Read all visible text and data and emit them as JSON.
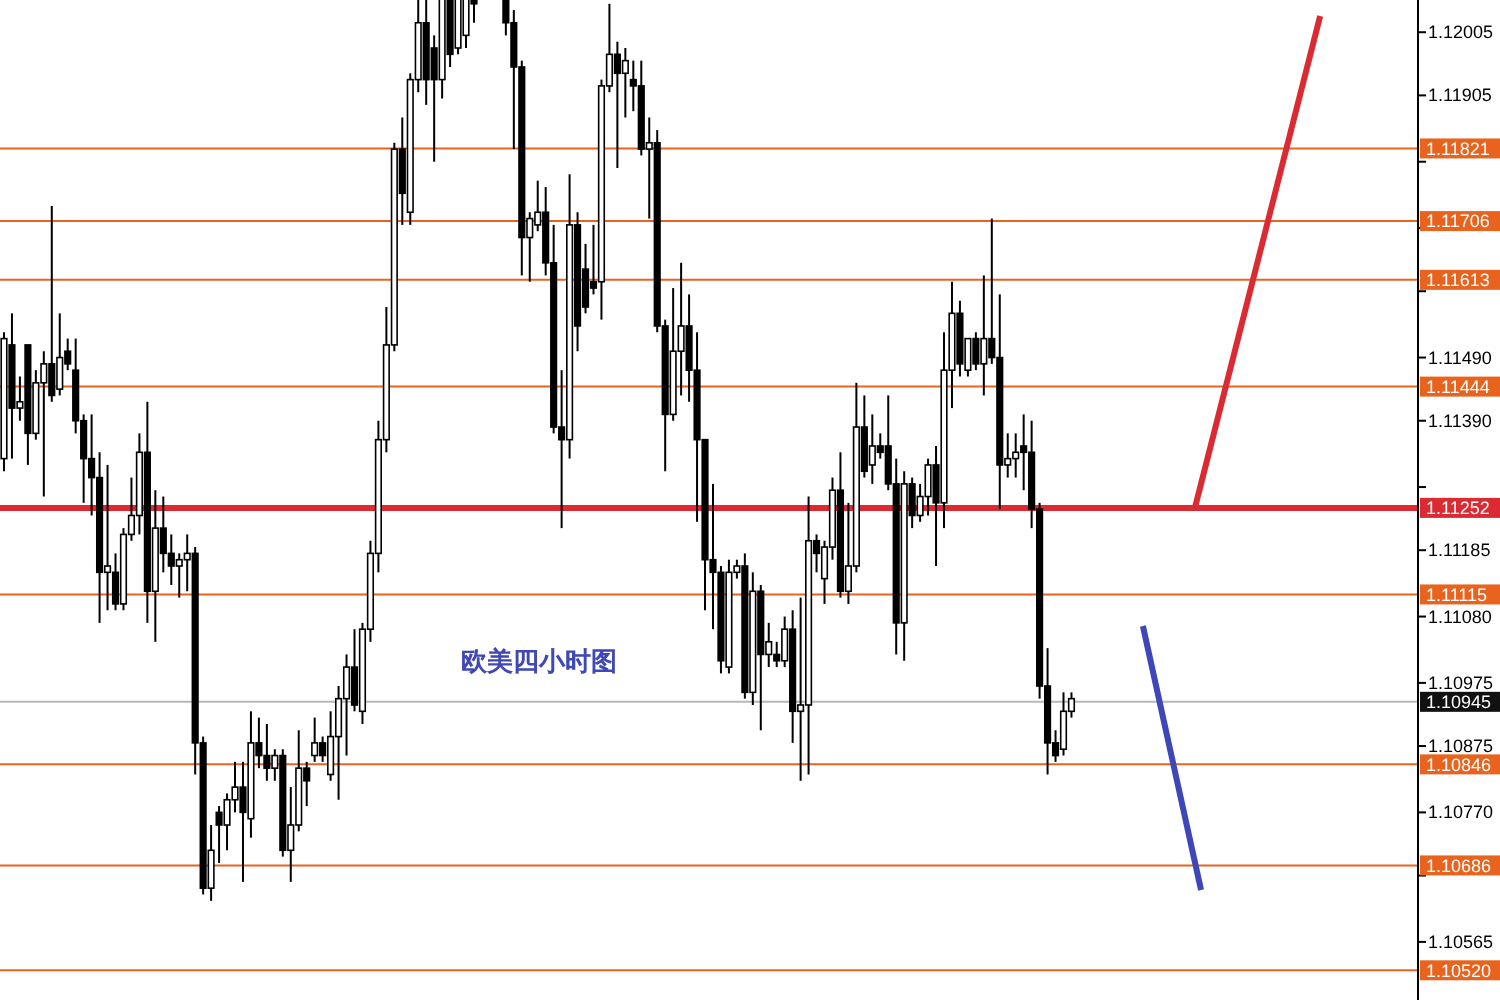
{
  "chart_data": {
    "type": "candlestick",
    "categories": [
      null,
      null,
      null,
      null,
      null,
      null,
      null,
      null,
      null,
      null,
      null,
      null,
      null,
      null,
      null,
      null,
      null,
      null,
      null,
      null,
      null,
      null,
      null,
      null,
      null,
      null,
      null,
      null,
      null,
      null,
      null,
      null,
      null,
      null,
      null,
      null,
      null,
      null,
      null,
      null,
      null,
      null,
      null,
      null,
      null,
      null,
      null,
      null,
      null,
      null,
      null,
      null,
      null,
      null,
      null,
      null,
      null,
      null,
      null,
      null,
      null,
      null,
      null,
      null,
      null,
      null,
      null,
      null,
      null,
      null,
      null,
      null,
      null,
      null,
      null,
      null,
      null,
      null,
      null,
      null,
      null,
      null,
      null,
      null,
      null,
      null,
      null,
      null,
      null,
      null,
      null,
      null,
      null,
      null,
      null,
      null,
      null,
      null,
      null,
      null,
      null,
      null,
      null,
      null,
      null,
      null,
      null,
      null,
      null,
      null,
      null,
      null,
      null,
      null,
      null,
      null,
      null,
      null,
      null,
      null,
      null,
      null,
      null,
      null,
      null,
      null,
      null,
      null,
      null,
      null,
      null,
      null,
      null,
      null,
      null,
      null,
      null,
      null,
      null,
      null,
      null,
      null,
      null,
      null,
      null,
      null,
      null,
      null,
      null,
      null,
      null,
      null,
      null,
      null,
      null,
      null,
      null,
      null,
      null,
      null,
      null,
      null,
      null,
      null,
      null,
      null,
      null,
      null,
      null,
      null,
      null,
      null,
      null,
      null,
      null,
      null,
      null,
      null
    ],
    "ohlc": [
      [
        1.1133,
        1.1153,
        1.1131,
        1.1152
      ],
      [
        1.1151,
        1.1156,
        1.1133,
        1.1141
      ],
      [
        1.1141,
        1.1146,
        1.1139,
        1.1142
      ],
      [
        1.1151,
        1.1151,
        1.1132,
        1.1137
      ],
      [
        1.1137,
        1.1147,
        1.1136,
        1.1145
      ],
      [
        1.1145,
        1.115,
        1.1127,
        1.1148
      ],
      [
        1.1148,
        1.1173,
        1.1142,
        1.1143
      ],
      [
        1.1144,
        1.1156,
        1.1143,
        1.1149
      ],
      [
        1.115,
        1.1152,
        1.1147,
        1.1148
      ],
      [
        1.1147,
        1.1152,
        1.1137,
        1.1139
      ],
      [
        1.1139,
        1.114,
        1.1126,
        1.1133
      ],
      [
        1.1133,
        1.114,
        1.1124,
        1.113
      ],
      [
        1.113,
        1.1134,
        1.1107,
        1.1115
      ],
      [
        1.1115,
        1.1132,
        1.1109,
        1.1116
      ],
      [
        1.1115,
        1.1118,
        1.1109,
        1.111
      ],
      [
        1.111,
        1.1122,
        1.1109,
        1.1121
      ],
      [
        1.1121,
        1.113,
        1.112,
        1.1124
      ],
      [
        1.1124,
        1.1137,
        1.1121,
        1.1134
      ],
      [
        1.1134,
        1.1142,
        1.1107,
        1.1112
      ],
      [
        1.1112,
        1.1128,
        1.1104,
        1.1122
      ],
      [
        1.1122,
        1.1127,
        1.1115,
        1.1118
      ],
      [
        1.1118,
        1.1121,
        1.1113,
        1.1116
      ],
      [
        1.1116,
        1.1118,
        1.1111,
        1.1117
      ],
      [
        1.1117,
        1.1121,
        1.1112,
        1.1118
      ],
      [
        1.1118,
        1.1119,
        1.1083,
        1.1088
      ],
      [
        1.1088,
        1.1089,
        1.1064,
        1.1065
      ],
      [
        1.1065,
        1.1075,
        1.1063,
        1.1071
      ],
      [
        1.1077,
        1.1078,
        1.1069,
        1.1075
      ],
      [
        1.1075,
        1.108,
        1.1071,
        1.1079
      ],
      [
        1.1079,
        1.1085,
        1.1077,
        1.1081
      ],
      [
        1.1081,
        1.1085,
        1.1066,
        1.1077
      ],
      [
        1.1076,
        1.1093,
        1.1073,
        1.1088
      ],
      [
        1.1088,
        1.1092,
        1.1084,
        1.1086
      ],
      [
        1.1086,
        1.1091,
        1.1082,
        1.1084
      ],
      [
        1.1084,
        1.1087,
        1.1082,
        1.1086
      ],
      [
        1.1086,
        1.1087,
        1.107,
        1.1071
      ],
      [
        1.1071,
        1.1081,
        1.1066,
        1.1075
      ],
      [
        1.1075,
        1.109,
        1.1074,
        1.1084
      ],
      [
        1.1084,
        1.1085,
        1.1078,
        1.1082
      ],
      [
        1.1086,
        1.1092,
        1.1085,
        1.1088
      ],
      [
        1.1088,
        1.1089,
        1.1085,
        1.1086
      ],
      [
        1.1083,
        1.1093,
        1.1082,
        1.1089
      ],
      [
        1.1089,
        1.1097,
        1.1079,
        1.1095
      ],
      [
        1.1095,
        1.1102,
        1.1086,
        1.11
      ],
      [
        1.11,
        1.1106,
        1.1093,
        1.1094
      ],
      [
        1.1093,
        1.1107,
        1.1091,
        1.1106
      ],
      [
        1.1106,
        1.112,
        1.1104,
        1.1118
      ],
      [
        1.1118,
        1.1139,
        1.1115,
        1.1136
      ],
      [
        1.1136,
        1.1157,
        1.1134,
        1.1151
      ],
      [
        1.1151,
        1.1183,
        1.115,
        1.1182
      ],
      [
        1.1182,
        1.1187,
        1.117,
        1.1175
      ],
      [
        1.1172,
        1.1194,
        1.117,
        1.1193
      ],
      [
        1.1193,
        1.1206,
        1.1191,
        1.1202
      ],
      [
        1.1202,
        1.1206,
        1.1189,
        1.1193
      ],
      [
        1.1198,
        1.12,
        1.118,
        1.1193
      ],
      [
        1.1193,
        1.1206,
        1.119,
        1.1206
      ],
      [
        1.1206,
        1.1206,
        1.1195,
        1.1197
      ],
      [
        1.1198,
        1.1206,
        1.1197,
        1.1206
      ],
      [
        1.12,
        1.1206,
        1.1198,
        1.1206
      ],
      [
        1.1206,
        1.1206,
        1.1202,
        1.1205
      ],
      null,
      null,
      null,
      [
        1.1206,
        1.1206,
        1.12,
        1.1202
      ],
      [
        1.1202,
        1.1204,
        1.1182,
        1.1195
      ],
      [
        1.1195,
        1.1196,
        1.1162,
        1.1168
      ],
      [
        1.1168,
        1.1172,
        1.1161,
        1.1171
      ],
      [
        1.117,
        1.1177,
        1.1169,
        1.1172
      ],
      [
        1.1172,
        1.1176,
        1.1162,
        1.1164
      ],
      [
        1.1164,
        1.117,
        1.1137,
        1.1138
      ],
      [
        1.1138,
        1.1147,
        1.1122,
        1.1136
      ],
      [
        1.1136,
        1.1178,
        1.1133,
        1.117
      ],
      [
        1.117,
        1.1172,
        1.115,
        1.1154
      ],
      [
        1.1163,
        1.1167,
        1.1156,
        1.1157
      ],
      [
        1.1161,
        1.117,
        1.1159,
        1.116
      ],
      [
        1.1161,
        1.1193,
        1.1155,
        1.1192
      ],
      [
        1.1192,
        1.1205,
        1.1191,
        1.1197
      ],
      [
        1.1197,
        1.1199,
        1.1179,
        1.1194
      ],
      [
        1.1194,
        1.1198,
        1.1187,
        1.1196
      ],
      [
        1.1193,
        1.1196,
        1.1188,
        1.1192
      ],
      [
        1.1192,
        1.1196,
        1.1181,
        1.1182
      ],
      [
        1.1182,
        1.1187,
        1.1171,
        1.1183
      ],
      [
        1.1183,
        1.1185,
        1.1153,
        1.1154
      ],
      [
        1.1154,
        1.1155,
        1.1131,
        1.114
      ],
      [
        1.114,
        1.116,
        1.1139,
        1.115
      ],
      [
        1.115,
        1.1164,
        1.1143,
        1.1154
      ],
      [
        1.1154,
        1.1159,
        1.1142,
        1.1147
      ],
      [
        1.1147,
        1.1153,
        1.1123,
        1.1136
      ],
      [
        1.1136,
        1.1136,
        1.1109,
        1.1117
      ],
      [
        1.1117,
        1.1129,
        1.1106,
        1.1115
      ],
      [
        1.1115,
        1.1116,
        1.1099,
        1.1101
      ],
      [
        1.11,
        1.1117,
        1.1099,
        1.1115
      ],
      [
        1.1115,
        1.1117,
        1.1114,
        1.1116
      ],
      [
        1.1116,
        1.1118,
        1.1095,
        1.1096
      ],
      [
        1.1096,
        1.1115,
        1.1094,
        1.1112
      ],
      [
        1.1112,
        1.1113,
        1.109,
        1.1102
      ],
      [
        1.1102,
        1.1107,
        1.11,
        1.1104
      ],
      [
        1.1102,
        1.1104,
        1.11,
        1.1101
      ],
      [
        1.1101,
        1.1108,
        1.11,
        1.1106
      ],
      [
        1.1106,
        1.1109,
        1.1088,
        1.1093
      ],
      [
        1.1093,
        1.1111,
        1.1082,
        1.1094
      ],
      [
        1.1094,
        1.1127,
        1.1083,
        1.112
      ],
      [
        1.112,
        1.1121,
        1.1115,
        1.1118
      ],
      [
        1.1114,
        1.112,
        1.111,
        1.1119
      ],
      [
        1.1119,
        1.113,
        1.1117,
        1.1128
      ],
      [
        1.1128,
        1.1134,
        1.1111,
        1.1112
      ],
      [
        1.1112,
        1.1126,
        1.111,
        1.1116
      ],
      [
        1.1116,
        1.1145,
        1.1115,
        1.1138
      ],
      [
        1.1138,
        1.1143,
        1.113,
        1.1131
      ],
      [
        1.1132,
        1.114,
        1.1129,
        1.1135
      ],
      [
        1.1135,
        1.1137,
        1.1133,
        1.1134
      ],
      [
        1.1135,
        1.1143,
        1.1128,
        1.1129
      ],
      [
        1.1129,
        1.1133,
        1.1102,
        1.1107
      ],
      [
        1.1107,
        1.1131,
        1.1101,
        1.1129
      ],
      [
        1.1129,
        1.113,
        1.1122,
        1.1124
      ],
      [
        1.1124,
        1.1129,
        1.1123,
        1.1127
      ],
      [
        1.1127,
        1.1133,
        1.1124,
        1.1132
      ],
      [
        1.1132,
        1.1135,
        1.1116,
        1.1126
      ],
      [
        1.1126,
        1.1153,
        1.1122,
        1.1147
      ],
      [
        1.1147,
        1.1161,
        1.1141,
        1.1156
      ],
      [
        1.1156,
        1.1158,
        1.1146,
        1.1148
      ],
      [
        1.1147,
        1.1152,
        1.1146,
        1.1152
      ],
      [
        1.1152,
        1.1153,
        1.1147,
        1.1148
      ],
      [
        1.1148,
        1.1162,
        1.1143,
        1.1152
      ],
      [
        1.1152,
        1.1171,
        1.1148,
        1.1149
      ],
      [
        1.1149,
        1.1159,
        1.1125,
        1.1132
      ],
      [
        1.1132,
        1.1137,
        1.113,
        1.1133
      ],
      [
        1.1133,
        1.1137,
        1.113,
        1.1134
      ],
      [
        1.1135,
        1.114,
        1.1128,
        1.1134
      ],
      [
        1.1134,
        1.1139,
        1.1122,
        1.1125
      ],
      [
        1.1125,
        1.1126,
        1.1095,
        1.1097
      ],
      [
        1.1097,
        1.1103,
        1.1083,
        1.1088
      ],
      [
        1.1088,
        1.109,
        1.1085,
        1.1086
      ],
      [
        1.1087,
        1.1096,
        1.1086,
        1.1093
      ],
      [
        1.1093,
        1.1096,
        1.1092,
        1.1095
      ],
      null,
      null,
      null,
      null,
      null,
      null,
      null,
      null,
      null,
      null,
      null,
      null,
      null,
      null,
      null,
      null,
      null,
      null,
      null,
      null,
      null,
      null,
      null,
      null,
      null,
      null,
      null,
      null,
      null,
      null,
      null,
      null,
      null,
      null,
      null,
      null,
      null,
      null,
      null,
      null,
      null,
      null,
      null
    ],
    "ylim": [
      1.10473,
      1.12056
    ],
    "yticks": [
      {
        "value": 1.12005,
        "label": "1.12005"
      },
      {
        "value": 1.11905,
        "label": "1.11905"
      },
      {
        "value": 1.118,
        "label": null
      },
      {
        "value": 1.11695,
        "label": null
      },
      {
        "value": 1.11595,
        "label": null
      },
      {
        "value": 1.1149,
        "label": "1.11490"
      },
      {
        "value": 1.1139,
        "label": "1.11390"
      },
      {
        "value": 1.11285,
        "label": null
      },
      {
        "value": 1.11185,
        "label": "1.11185"
      },
      {
        "value": 1.1108,
        "label": "1.11080"
      },
      {
        "value": 1.10975,
        "label": "1.10975"
      },
      {
        "value": 1.10875,
        "label": "1.10875"
      },
      {
        "value": 1.1077,
        "label": "1.10770"
      },
      {
        "value": 1.1067,
        "label": null
      },
      {
        "value": 1.10565,
        "label": "1.10565"
      }
    ],
    "tick_labels": "y",
    "ref_lines": [
      {
        "axis": "y",
        "value": 1.11821,
        "label": "1.11821",
        "color": "#e8641e"
      },
      {
        "axis": "y",
        "value": 1.11706,
        "label": "1.11706",
        "color": "#e8641e"
      },
      {
        "axis": "y",
        "value": 1.11613,
        "label": "1.11613",
        "color": "#e8641e"
      },
      {
        "axis": "y",
        "value": 1.11444,
        "label": "1.11444",
        "color": "#e8641e"
      },
      {
        "axis": "y",
        "value": 1.11252,
        "label": "1.11252",
        "color": "#dc2a32"
      },
      {
        "axis": "y",
        "value": 1.11115,
        "label": "1.11115",
        "color": "#e8641e"
      },
      {
        "axis": "y",
        "value": 1.10846,
        "label": "1.10846",
        "color": "#e8641e"
      },
      {
        "axis": "y",
        "value": 1.10686,
        "label": "1.10686",
        "color": "#e8641e"
      },
      {
        "axis": "y",
        "value": 1.1052,
        "label": "1.10520",
        "color": "#e8641e"
      },
      {
        "axis": "y",
        "value": 1.10945,
        "label": "1.10945",
        "color": "#111111"
      }
    ],
    "annotations": [
      "欧美四小时图"
    ]
  }
}
